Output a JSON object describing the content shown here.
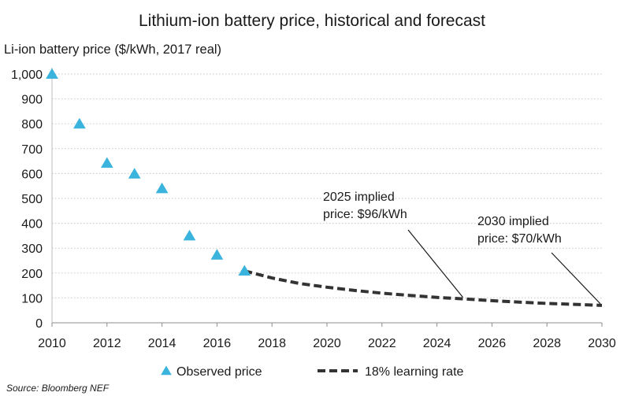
{
  "chart_data": {
    "type": "scatter+line",
    "title": "Lithium-ion battery price, historical and forecast",
    "ylabel": "Li-ion battery price ($/kWh, 2017 real)",
    "xlabel": "",
    "xlim": [
      2010,
      2030
    ],
    "ylim": [
      0,
      1000
    ],
    "x_ticks": [
      2010,
      2012,
      2014,
      2016,
      2018,
      2020,
      2022,
      2024,
      2026,
      2028,
      2030
    ],
    "y_ticks": [
      0,
      100,
      200,
      300,
      400,
      500,
      600,
      700,
      800,
      900,
      1000
    ],
    "y_tick_labels": [
      "0",
      "100",
      "200",
      "300",
      "400",
      "500",
      "600",
      "700",
      "800",
      "900",
      "1,000"
    ],
    "grid": "horizontal dotted",
    "series": [
      {
        "name": "Observed price",
        "marker": "triangle",
        "color": "#3ab4dc",
        "x": [
          2010,
          2011,
          2012,
          2013,
          2014,
          2015,
          2016,
          2017
        ],
        "values": [
          1000,
          800,
          642,
          599,
          540,
          350,
          273,
          209
        ]
      },
      {
        "name": "18% learning rate",
        "style": "dashed",
        "color": "#333333",
        "x": [
          2017,
          2018,
          2019,
          2020,
          2021,
          2022,
          2023,
          2024,
          2025,
          2026,
          2027,
          2028,
          2029,
          2030
        ],
        "values": [
          209,
          180,
          158,
          143,
          130,
          119,
          110,
          102,
          96,
          89,
          83,
          78,
          74,
          70
        ]
      }
    ],
    "annotations": [
      {
        "lines": [
          "2025 implied",
          "price: $96/kWh"
        ],
        "x": 2025,
        "y": 96
      },
      {
        "lines": [
          "2030 implied",
          "price: $70/kWh"
        ],
        "x": 2030,
        "y": 70
      }
    ],
    "legend": [
      "Observed price",
      "18% learning rate"
    ],
    "legend_position": "bottom",
    "source": "Source: Bloomberg NEF"
  }
}
